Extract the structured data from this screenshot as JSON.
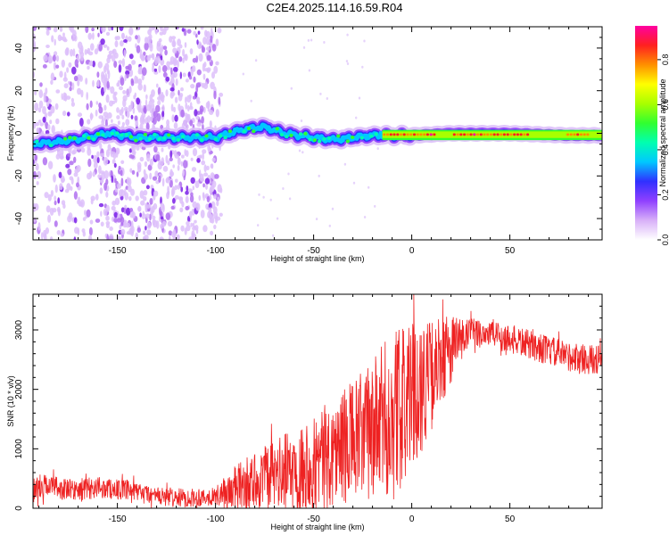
{
  "title": "C2E4.2025.114.16.59.R04",
  "chart_data": [
    {
      "type": "heatmap",
      "xlabel": "Height of straight line (km)",
      "ylabel": "Frequency (Hz)",
      "xlim": [
        -193,
        97
      ],
      "ylim": [
        -50,
        50
      ],
      "x_ticks": [
        -150,
        -100,
        -50,
        0,
        50
      ],
      "y_ticks": [
        -40,
        -20,
        0,
        20,
        40
      ],
      "colorbar": {
        "label": "Normalized spectral amplitude",
        "range": [
          0,
          0.95
        ],
        "ticks": [
          0.0,
          0.2,
          0.4,
          0.6,
          0.8
        ],
        "colors": [
          "#ffffff",
          "#d8b0f8",
          "#9040ff",
          "#3030ff",
          "#00c8ff",
          "#00ffb0",
          "#30ff30",
          "#a8ff00",
          "#ffff00",
          "#ff9000",
          "#ff2020",
          "#ff00a0"
        ]
      },
      "ridge_center_hz": [
        {
          "x": -193,
          "y": -5
        },
        {
          "x": -180,
          "y": -4
        },
        {
          "x": -165,
          "y": -2
        },
        {
          "x": -155,
          "y": 0
        },
        {
          "x": -140,
          "y": -2
        },
        {
          "x": -120,
          "y": -2
        },
        {
          "x": -100,
          "y": -2
        },
        {
          "x": -85,
          "y": 2
        },
        {
          "x": -75,
          "y": 3
        },
        {
          "x": -65,
          "y": 0
        },
        {
          "x": -50,
          "y": -2
        },
        {
          "x": -40,
          "y": -3
        },
        {
          "x": -30,
          "y": -2
        },
        {
          "x": -20,
          "y": -1
        },
        {
          "x": 0,
          "y": -1
        },
        {
          "x": 20,
          "y": 0
        },
        {
          "x": 50,
          "y": 0
        },
        {
          "x": 80,
          "y": -1
        },
        {
          "x": 97,
          "y": -1
        }
      ],
      "scatter_region_x": [
        -193,
        -97
      ]
    },
    {
      "type": "line",
      "xlabel": "Height of straight line (km)",
      "ylabel": "SNR (10 * v/v)",
      "xlim": [
        -193,
        97
      ],
      "ylim": [
        0,
        3600
      ],
      "x_ticks": [
        -150,
        -100,
        -50,
        0,
        50
      ],
      "y_ticks": [
        0,
        1000,
        2000,
        3000
      ],
      "color": "#ee2222",
      "series": [
        {
          "points": [
            {
              "x": -193,
              "y": 300
            },
            {
              "x": -185,
              "y": 400
            },
            {
              "x": -175,
              "y": 300
            },
            {
              "x": -160,
              "y": 350
            },
            {
              "x": -145,
              "y": 300
            },
            {
              "x": -130,
              "y": 200
            },
            {
              "x": -115,
              "y": 170
            },
            {
              "x": -100,
              "y": 200
            },
            {
              "x": -92,
              "y": 300
            },
            {
              "x": -80,
              "y": 450
            },
            {
              "x": -65,
              "y": 600
            },
            {
              "x": -50,
              "y": 800
            },
            {
              "x": -40,
              "y": 950
            },
            {
              "x": -30,
              "y": 1100
            },
            {
              "x": -20,
              "y": 1300
            },
            {
              "x": -12,
              "y": 1500
            },
            {
              "x": -5,
              "y": 1700
            },
            {
              "x": 0,
              "y": 1900
            },
            {
              "x": 5,
              "y": 2100
            },
            {
              "x": 12,
              "y": 2300
            },
            {
              "x": 20,
              "y": 2700
            },
            {
              "x": 30,
              "y": 2950
            },
            {
              "x": 40,
              "y": 2950
            },
            {
              "x": 50,
              "y": 2850
            },
            {
              "x": 60,
              "y": 2750
            },
            {
              "x": 70,
              "y": 2650
            },
            {
              "x": 80,
              "y": 2550
            },
            {
              "x": 90,
              "y": 2500
            },
            {
              "x": 97,
              "y": 2500
            }
          ],
          "noise_amplitude": [
            {
              "x": -193,
              "y": 200
            },
            {
              "x": -100,
              "y": 150
            },
            {
              "x": -90,
              "y": 400
            },
            {
              "x": -60,
              "y": 700
            },
            {
              "x": -40,
              "y": 900
            },
            {
              "x": -20,
              "y": 1200
            },
            {
              "x": -10,
              "y": 1500
            },
            {
              "x": 5,
              "y": 1100
            },
            {
              "x": 20,
              "y": 600
            },
            {
              "x": 30,
              "y": 250
            },
            {
              "x": 97,
              "y": 250
            }
          ]
        }
      ]
    }
  ]
}
